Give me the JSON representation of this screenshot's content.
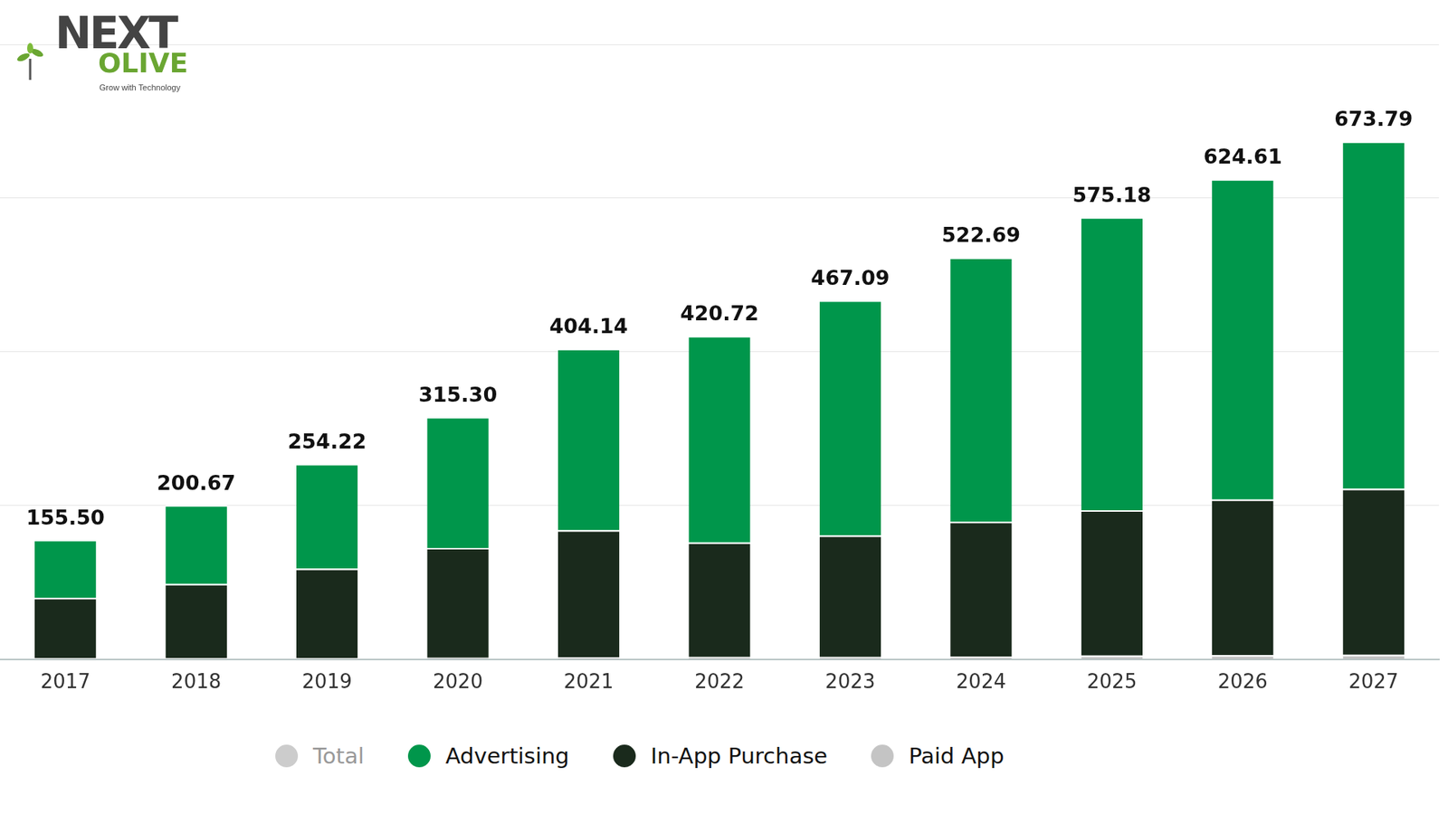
{
  "chart_data": {
    "type": "bar",
    "annotations": [
      "NEXT",
      "OLIVE",
      "Grow with Technology"
    ],
    "categories": [
      "2017",
      "2018",
      "2019",
      "2020",
      "2021",
      "2022",
      "2023",
      "2024",
      "2025",
      "2026",
      "2027"
    ],
    "series": [
      {
        "name": "Total",
        "type": "line",
        "color": "#cccccc",
        "values": [
          155.5,
          200.67,
          254.22,
          315.3,
          404.14,
          420.72,
          467.09,
          522.69,
          575.18,
          624.61,
          673.79
        ],
        "value_labels": [
          "155.50",
          "200.67",
          "254.22",
          "315.30",
          "404.14",
          "420.72",
          "467.09",
          "522.69",
          "575.18",
          "624.61",
          "673.79"
        ]
      },
      {
        "name": "Advertising",
        "color": "#00964b",
        "values": [
          75.5,
          102.67,
          136.22,
          170.3,
          236.14,
          268.72,
          306.09,
          343.69,
          381.18,
          416.61,
          451.79
        ]
      },
      {
        "name": "In-App Purchase",
        "color": "#1a2a1c",
        "values": [
          78.5,
          96.5,
          116.5,
          143,
          165.5,
          149,
          158,
          175.5,
          189,
          202.5,
          216
        ]
      },
      {
        "name": "Paid App",
        "color": "#c4c4c4",
        "values": [
          1.5,
          1.5,
          1.5,
          2,
          2.5,
          3,
          3,
          3.5,
          5,
          5.5,
          6
        ]
      }
    ],
    "stacked": true,
    "data_labels": true,
    "ylim": [
      0,
      800
    ],
    "yticks": [
      0,
      200,
      400,
      600,
      800
    ],
    "grid": true,
    "tick_labels": "x",
    "legend": "bottom"
  }
}
